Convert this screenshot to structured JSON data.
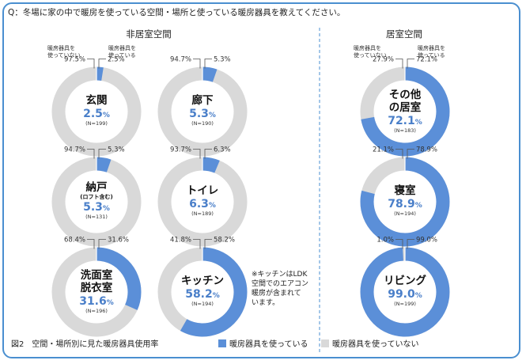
{
  "question": "Q：冬場に家の中で暖房を使っている空間・場所と使っている暖房器具を教えてください。",
  "groups": {
    "non_living": "非居室空間",
    "living": "居室空間"
  },
  "small_labels": {
    "not_using": "暖房器具を\n使っていない",
    "using": "暖房器具を\n使っている"
  },
  "note": "※キッチンはLDK\n空間でのエアコン\n暖房が含まれて\nいます。",
  "figure_caption": "図2　空間・場所別に見た暖房器具使用率",
  "colors": {
    "using": "#5b8fd8",
    "not_using": "#d9d9d9",
    "text_value": "#4a7fc9",
    "frame": "#4a8fd0"
  },
  "chart_data": {
    "type": "pie",
    "title": "図2　空間・場所別に見た暖房器具使用率",
    "legend": {
      "position": "bottom",
      "entries": [
        "暖房器具を使っている",
        "暖房器具を使っていない"
      ]
    },
    "series_names": [
      "暖房器具を使っている",
      "暖房器具を使っていない"
    ],
    "rooms": [
      {
        "name": "玄関",
        "sub": "",
        "using": 2.5,
        "not_using": 97.5,
        "n": "(N=199)",
        "group": "非居室空間"
      },
      {
        "name": "廊下",
        "sub": "",
        "using": 5.3,
        "not_using": 94.7,
        "n": "(N=190)",
        "group": "非居室空間"
      },
      {
        "name": "納戸",
        "sub": "(ロフト含む)",
        "using": 5.3,
        "not_using": 94.7,
        "n": "(N=131)",
        "group": "非居室空間"
      },
      {
        "name": "トイレ",
        "sub": "",
        "using": 6.3,
        "not_using": 93.7,
        "n": "(N=189)",
        "group": "非居室空間"
      },
      {
        "name": "洗面室\n脱衣室",
        "sub": "",
        "using": 31.6,
        "not_using": 68.4,
        "n": "(N=196)",
        "group": "非居室空間"
      },
      {
        "name": "キッチン",
        "sub": "",
        "using": 58.2,
        "not_using": 41.8,
        "n": "(N=194)",
        "group": "非居室空間"
      },
      {
        "name": "その他\nの居室",
        "sub": "",
        "using": 72.1,
        "not_using": 27.9,
        "n": "(N=183)",
        "group": "居室空間"
      },
      {
        "name": "寝室",
        "sub": "",
        "using": 78.9,
        "not_using": 21.1,
        "n": "(N=194)",
        "group": "居室空間"
      },
      {
        "name": "リビング",
        "sub": "",
        "using": 99.0,
        "not_using": 1.0,
        "n": "(N=199)",
        "group": "居室空間"
      }
    ]
  }
}
